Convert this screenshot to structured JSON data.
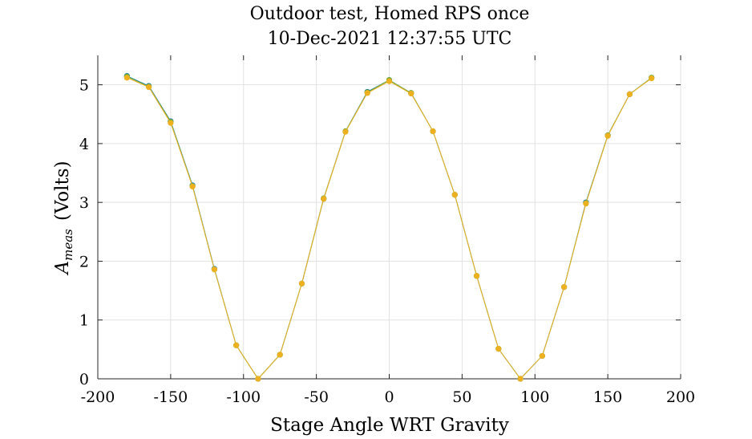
{
  "chart_data": {
    "type": "line",
    "title": [
      "Outdoor test, Homed RPS once",
      "10-Dec-2021 12:37:55 UTC"
    ],
    "xlabel": "Stage Angle WRT Gravity",
    "ylabel": {
      "base": "A",
      "sub": "meas",
      "unit": "(Volts)"
    },
    "xlim": [
      -200,
      200
    ],
    "ylim": [
      0,
      5.5
    ],
    "xticks": [
      -200,
      -150,
      -100,
      -50,
      0,
      50,
      100,
      150,
      200
    ],
    "yticks": [
      0,
      1,
      2,
      3,
      4,
      5
    ],
    "grid": true,
    "x": [
      -180,
      -165,
      -150,
      -135,
      -120,
      -105,
      -90,
      -75,
      -60,
      -45,
      -30,
      -15,
      0,
      15,
      30,
      45,
      60,
      75,
      90,
      105,
      120,
      135,
      150,
      165,
      180
    ],
    "series": [
      {
        "color": "#0072bd",
        "values": [
          5.15,
          4.98,
          4.38,
          3.29,
          1.87,
          0.57,
          0.0,
          0.41,
          1.62,
          3.06,
          4.21,
          4.88,
          5.08,
          4.86,
          4.21,
          3.13,
          1.75,
          0.51,
          0.0,
          0.39,
          1.56,
          3.0,
          4.14,
          4.84,
          5.12
        ]
      },
      {
        "color": "#77ac30",
        "values": [
          5.14,
          4.97,
          4.37,
          3.28,
          1.86,
          0.57,
          0.0,
          0.41,
          1.62,
          3.07,
          4.21,
          4.87,
          5.08,
          4.86,
          4.21,
          3.13,
          1.75,
          0.51,
          0.0,
          0.39,
          1.56,
          2.99,
          4.14,
          4.84,
          5.12
        ]
      },
      {
        "color": "#edb120",
        "values": [
          5.12,
          4.96,
          4.35,
          3.27,
          1.86,
          0.57,
          0.0,
          0.41,
          1.62,
          3.06,
          4.2,
          4.86,
          5.06,
          4.85,
          4.21,
          3.13,
          1.75,
          0.51,
          0.0,
          0.39,
          1.56,
          2.98,
          4.13,
          4.84,
          5.11
        ]
      }
    ]
  }
}
